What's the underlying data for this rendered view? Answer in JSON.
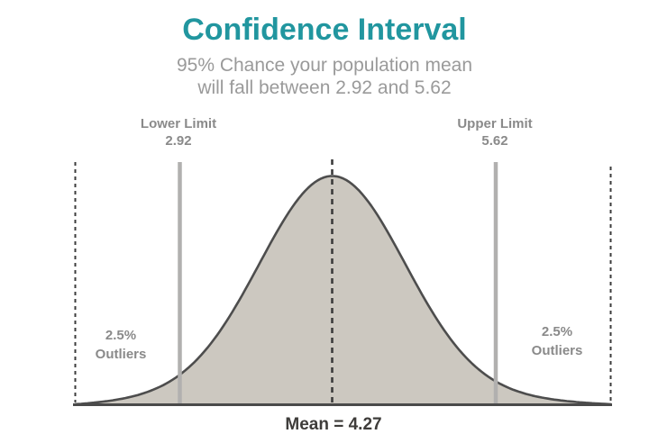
{
  "header": {
    "title": "Confidence Interval",
    "subtitle_line1": "95% Chance your population mean",
    "subtitle_line2": "will fall between 2.92 and 5.62"
  },
  "annotations": {
    "lower_limit_label": "Lower Limit",
    "lower_limit_value": "2.92",
    "upper_limit_label": "Upper Limit",
    "upper_limit_value": "5.62",
    "left_outlier_line1": "2.5%",
    "left_outlier_line2": "Outliers",
    "right_outlier_line1": "2.5%",
    "right_outlier_line2": "Outliers",
    "mean_label": "Mean = 4.27"
  },
  "colors": {
    "title": "#21969f",
    "subtitle": "#9a9a9a",
    "label": "#8a8a8a",
    "mean_text": "#3e3c3a",
    "curve_fill": "#ccc8c0",
    "curve_stroke": "#4d4d4d",
    "solid_line": "#b1b0af",
    "dashed_line": "#3c3c3c",
    "baseline": "#4a4a4a"
  },
  "chart_data": {
    "type": "area",
    "distribution": "normal bell curve",
    "title": "Confidence Interval",
    "mean": 4.27,
    "lower_limit": 2.92,
    "upper_limit": 5.62,
    "confidence_level": "95%",
    "tail_probability_each_side": "2.5%",
    "annotations": [
      "Lower Limit 2.92",
      "Upper Limit 5.62",
      "Mean = 4.27",
      "2.5% Outliers (left tail)",
      "2.5% Outliers (right tail)"
    ],
    "legend": "none",
    "grid": false,
    "axes": "single horizontal baseline, no tick marks"
  }
}
